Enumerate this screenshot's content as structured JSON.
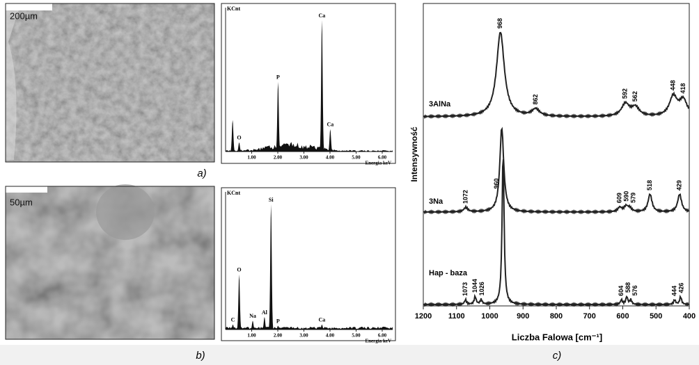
{
  "panels": [
    {
      "scale_bar": "200µm",
      "caption": "a)",
      "eds": {
        "y_label": "KCnt",
        "x_label": "Energia keV",
        "xlim": [
          0,
          6.4
        ],
        "xticks": [
          {
            "value": 1,
            "label": "1.00"
          },
          {
            "value": 2,
            "label": "2.00"
          },
          {
            "value": 3,
            "label": "3.00"
          },
          {
            "value": 4,
            "label": "4.00"
          },
          {
            "value": 5,
            "label": "5.00"
          },
          {
            "value": 6,
            "label": "6.00"
          }
        ],
        "peaks": [
          {
            "element": null,
            "energy": 0.27,
            "height": 0.24
          },
          {
            "element": "O",
            "energy": 0.52,
            "height": 0.07
          },
          {
            "element": "P",
            "energy": 2.01,
            "height": 0.53
          },
          {
            "element": "Ca",
            "energy": 3.69,
            "height": 1
          },
          {
            "element": "Ca",
            "energy": 4.01,
            "height": 0.17
          }
        ]
      }
    },
    {
      "scale_bar": "50µm",
      "caption": "b)",
      "eds": {
        "y_label": "KCnt",
        "x_label": "Energia keV",
        "xlim": [
          0,
          6.4
        ],
        "xticks": [
          {
            "value": 1,
            "label": "1.00"
          },
          {
            "value": 2,
            "label": "2.00"
          },
          {
            "value": 3,
            "label": "3.00"
          },
          {
            "value": 4,
            "label": "4.00"
          },
          {
            "value": 5,
            "label": "5.00"
          },
          {
            "value": 6,
            "label": "6.00"
          }
        ],
        "peaks": [
          {
            "element": "C",
            "energy": 0.28,
            "height": 0.04
          },
          {
            "element": "O",
            "energy": 0.52,
            "height": 0.44
          },
          {
            "element": "Na",
            "energy": 1.04,
            "height": 0.07
          },
          {
            "element": "Al",
            "energy": 1.49,
            "height": 0.1
          },
          {
            "element": "Si",
            "energy": 1.74,
            "height": 1
          },
          {
            "element": "P",
            "energy": 2.01,
            "height": 0.03
          },
          {
            "element": "Ca",
            "energy": 3.69,
            "height": 0.04
          }
        ]
      }
    }
  ],
  "raman": {
    "caption": "c)",
    "x_label": "Liczba Falowa [cm⁻¹]",
    "y_label": "Intensywność",
    "xlim": [
      1200,
      400
    ],
    "xticks": [
      1200,
      1100,
      1000,
      900,
      800,
      700,
      600,
      500,
      400
    ],
    "spectra": [
      {
        "name": "3AlNa",
        "peaks": [
          {
            "x": 968,
            "label": "968",
            "h": 0.95
          },
          {
            "x": 862,
            "label": "862",
            "h": 0.08
          },
          {
            "x": 592,
            "label": "592",
            "h": 0.14
          },
          {
            "x": 562,
            "label": "562",
            "h": 0.1
          },
          {
            "x": 448,
            "label": "448",
            "h": 0.22
          },
          {
            "x": 418,
            "label": "418",
            "h": 0.18
          }
        ]
      },
      {
        "name": "3Na",
        "peaks": [
          {
            "x": 1072,
            "label": "1072",
            "h": 0.05
          },
          {
            "x": 964,
            "label": null,
            "h": 0.95
          },
          {
            "x": 609,
            "label": "609",
            "h": 0.05
          },
          {
            "x": 590,
            "label": "590",
            "h": 0.06
          },
          {
            "x": 579,
            "label": "579",
            "h": 0.04
          },
          {
            "x": 518,
            "label": "518",
            "h": 0.2
          },
          {
            "x": 429,
            "label": "429",
            "h": 0.2
          }
        ]
      },
      {
        "name": "Hap - baza",
        "peaks": [
          {
            "x": 1073,
            "label": "1073",
            "h": 0.03
          },
          {
            "x": 1044,
            "label": "1044",
            "h": 0.05
          },
          {
            "x": 1026,
            "label": "1026",
            "h": 0.03
          },
          {
            "x": 960,
            "label": "960",
            "h": 1
          },
          {
            "x": 604,
            "label": "604",
            "h": 0.03
          },
          {
            "x": 588,
            "label": "588",
            "h": 0.05
          },
          {
            "x": 576,
            "label": "576",
            "h": 0.03
          },
          {
            "x": 444,
            "label": "444",
            "h": 0.03
          },
          {
            "x": 426,
            "label": "426",
            "h": 0.05
          }
        ]
      }
    ]
  }
}
